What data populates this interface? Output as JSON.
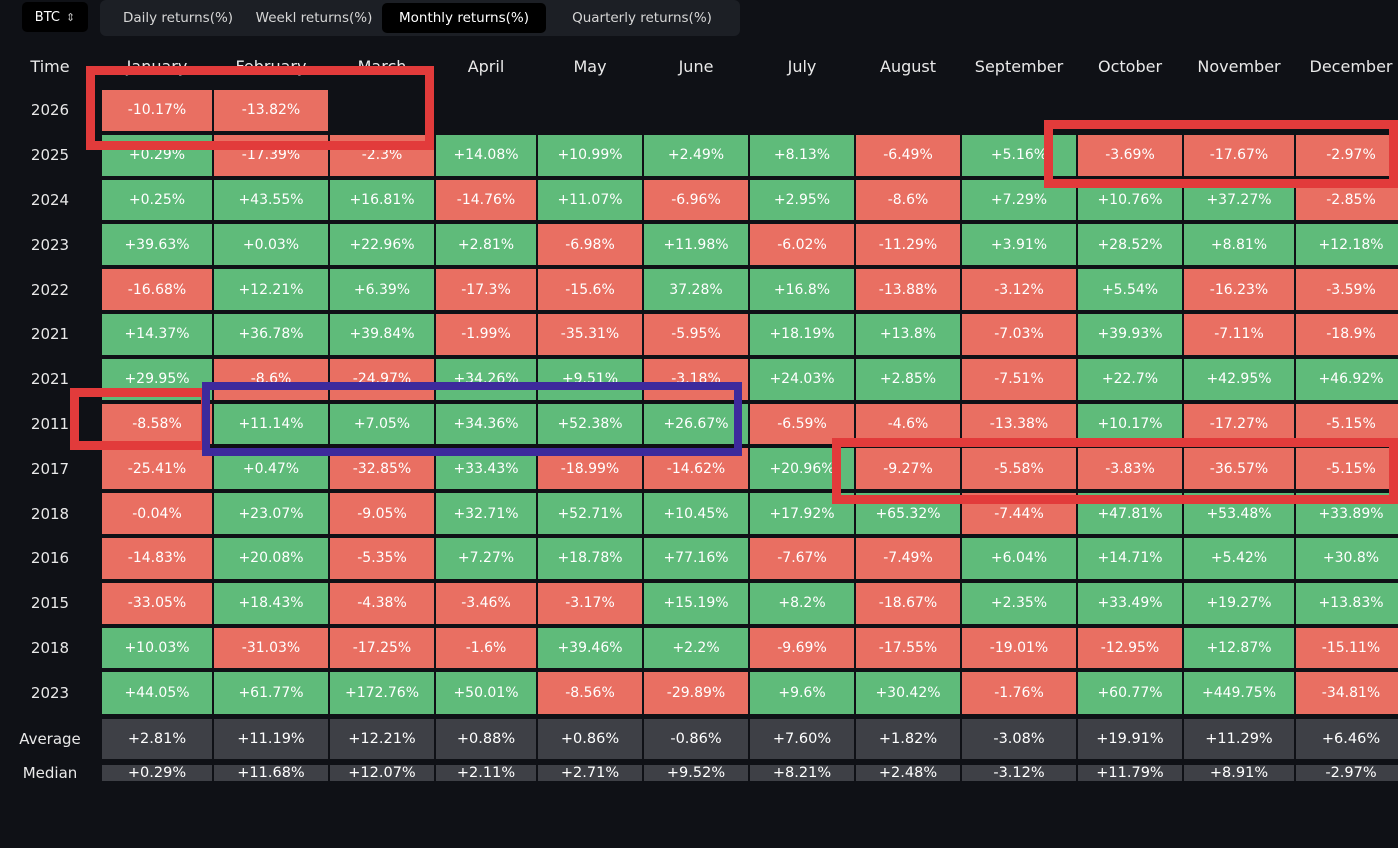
{
  "asset_select": {
    "value": "BTC",
    "icon": "chevron-updown-icon"
  },
  "tabs": [
    {
      "label": "Daily returns(%)",
      "active": false
    },
    {
      "label": "Weekl returns(%)",
      "active": false
    },
    {
      "label": "Monthly returns(%)",
      "active": true
    },
    {
      "label": "Quarterly returns(%)",
      "active": false
    }
  ],
  "header": {
    "time": "Time",
    "months": [
      "January",
      "February",
      "March",
      "April",
      "May",
      "June",
      "July",
      "August",
      "September",
      "October",
      "November",
      "December"
    ]
  },
  "rows": [
    {
      "year": "2026",
      "values": [
        "-10.17%",
        "-13.82%",
        "",
        "",
        "",
        "",
        "",
        "",
        "",
        "",
        "",
        ""
      ]
    },
    {
      "year": "2025",
      "values": [
        "+0.29%",
        "-17.39%",
        "-2.3%",
        "+14.08%",
        "+10.99%",
        "+2.49%",
        "+8.13%",
        "-6.49%",
        "+5.16%",
        "-3.69%",
        "-17.67%",
        "-2.97%"
      ]
    },
    {
      "year": "2024",
      "values": [
        "+0.25%",
        "+43.55%",
        "+16.81%",
        "-14.76%",
        "+11.07%",
        "-6.96%",
        "+2.95%",
        "-8.6%",
        "+7.29%",
        "+10.76%",
        "+37.27%",
        "-2.85%"
      ]
    },
    {
      "year": "2023",
      "values": [
        "+39.63%",
        "+0.03%",
        "+22.96%",
        "+2.81%",
        "-6.98%",
        "+11.98%",
        "-6.02%",
        "-11.29%",
        "+3.91%",
        "+28.52%",
        "+8.81%",
        "+12.18%"
      ]
    },
    {
      "year": "2022",
      "values": [
        "-16.68%",
        "+12.21%",
        "+6.39%",
        "-17.3%",
        "-15.6%",
        "37.28%",
        "+16.8%",
        "-13.88%",
        "-3.12%",
        "+5.54%",
        "-16.23%",
        "-3.59%"
      ]
    },
    {
      "year": "2021",
      "values": [
        "+14.37%",
        "+36.78%",
        "+39.84%",
        "-1.99%",
        "-35.31%",
        "-5.95%",
        "+18.19%",
        "+13.8%",
        "-7.03%",
        "+39.93%",
        "-7.11%",
        "-18.9%"
      ]
    },
    {
      "year": "2021",
      "values": [
        "+29.95%",
        "-8.6%",
        "-24.97%",
        "+34.26%",
        "+9.51%",
        "-3.18%",
        "+24.03%",
        "+2.85%",
        "-7.51%",
        "+22.7%",
        "+42.95%",
        "+46.92%"
      ]
    },
    {
      "year": "2011",
      "values": [
        "-8.58%",
        "+11.14%",
        "+7.05%",
        "+34.36%",
        "+52.38%",
        "+26.67%",
        "-6.59%",
        "-4.6%",
        "-13.38%",
        "+10.17%",
        "-17.27%",
        "-5.15%"
      ]
    },
    {
      "year": "2017",
      "values": [
        "-25.41%",
        "+0.47%",
        "-32.85%",
        "+33.43%",
        "-18.99%",
        "-14.62%",
        "+20.96%",
        "-9.27%",
        "-5.58%",
        "-3.83%",
        "-36.57%",
        "-5.15%"
      ]
    },
    {
      "year": "2018",
      "values": [
        "-0.04%",
        "+23.07%",
        "-9.05%",
        "+32.71%",
        "+52.71%",
        "+10.45%",
        "+17.92%",
        "+65.32%",
        "-7.44%",
        "+47.81%",
        "+53.48%",
        "+33.89%"
      ]
    },
    {
      "year": "2016",
      "values": [
        "-14.83%",
        "+20.08%",
        "-5.35%",
        "+7.27%",
        "+18.78%",
        "+77.16%",
        "-7.67%",
        "-7.49%",
        "+6.04%",
        "+14.71%",
        "+5.42%",
        "+30.8%"
      ]
    },
    {
      "year": "2015",
      "values": [
        "-33.05%",
        "+18.43%",
        "-4.38%",
        "-3.46%",
        "-3.17%",
        "+15.19%",
        "+8.2%",
        "-18.67%",
        "+2.35%",
        "+33.49%",
        "+19.27%",
        "+13.83%"
      ]
    },
    {
      "year": "2018",
      "values": [
        "+10.03%",
        "-31.03%",
        "-17.25%",
        "-1.6%",
        "+39.46%",
        "+2.2%",
        "-9.69%",
        "-17.55%",
        "-19.01%",
        "-12.95%",
        "+12.87%",
        "-15.11%"
      ]
    },
    {
      "year": "2023",
      "values": [
        "+44.05%",
        "+61.77%",
        "+172.76%",
        "+50.01%",
        "-8.56%",
        "-29.89%",
        "+9.6%",
        "+30.42%",
        "-1.76%",
        "+60.77%",
        "+449.75%",
        "-34.81%"
      ]
    }
  ],
  "summary": [
    {
      "label": "Average",
      "values": [
        "+2.81%",
        "+11.19%",
        "+12.21%",
        "+0.88%",
        "+0.86%",
        "-0.86%",
        "+7.60%",
        "+1.82%",
        "-3.08%",
        "+19.91%",
        "+11.29%",
        "+6.46%"
      ]
    },
    {
      "label": "Median",
      "values": [
        "+0.29%",
        "+11.68%",
        "+12.07%",
        "+2.11%",
        "+2.71%",
        "+9.52%",
        "+8.21%",
        "+2.48%",
        "-3.12%",
        "+11.79%",
        "+8.91%",
        "-2.97%"
      ]
    }
  ],
  "colors": {
    "positive": "#5fbb7a",
    "negative": "#e96f62",
    "neutral": "#3e4046",
    "annotation_red": "#e23b3b",
    "annotation_purple": "#3d2a9c"
  }
}
